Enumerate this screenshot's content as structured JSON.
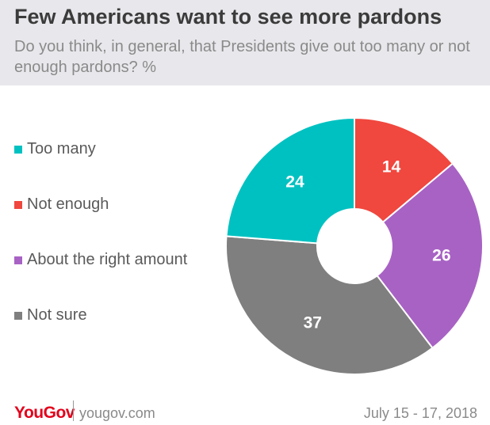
{
  "header": {
    "title": "Few Americans want to see more pardons",
    "subtitle": "Do you think, in general, that Presidents give out too many or not enough pardons? %"
  },
  "chart_data": {
    "type": "pie",
    "donut": true,
    "title": "Few Americans want to see more pardons",
    "subtitle": "Do you think, in general, that Presidents give out too many or not enough pardons? %",
    "legend_placement": "left",
    "slices": [
      {
        "label": "Not enough",
        "value": 14,
        "color": "#f0473e"
      },
      {
        "label": "About the right amount",
        "value": 26,
        "color": "#a862c4"
      },
      {
        "label": "Not sure",
        "value": 37,
        "color": "#7f7f7f"
      },
      {
        "label": "Too many",
        "value": 24,
        "color": "#00c1c1"
      }
    ],
    "legend": [
      {
        "label": "Too many",
        "color": "#00c1c1"
      },
      {
        "label": "Not enough",
        "color": "#f0473e"
      },
      {
        "label": "About the right amount",
        "color": "#a862c4"
      },
      {
        "label": "Not sure",
        "color": "#7f7f7f"
      }
    ]
  },
  "footer": {
    "logo": "YouGov",
    "site": "yougov.com",
    "date": "July 15 - 17, 2018"
  }
}
